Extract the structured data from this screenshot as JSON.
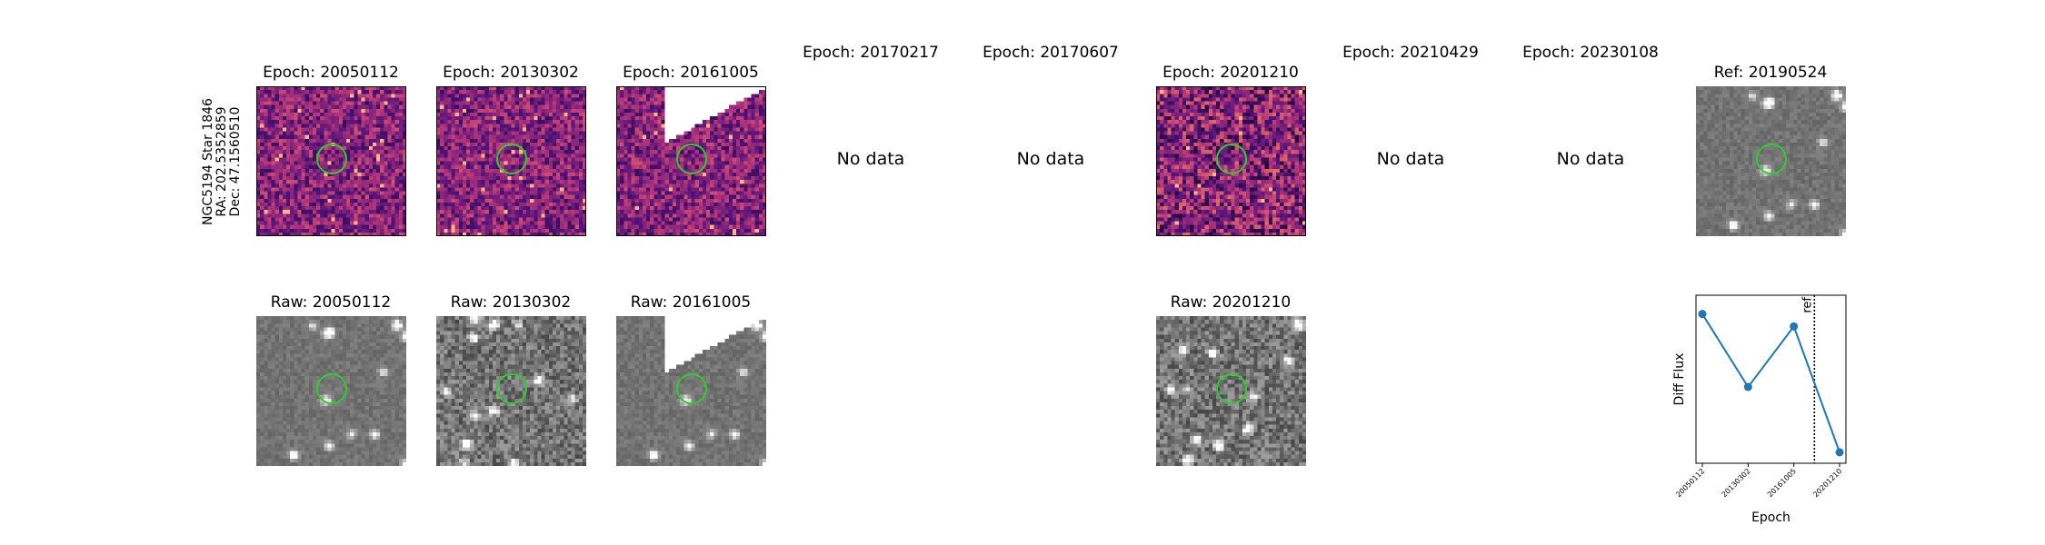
{
  "star_info": {
    "line1": "NGC5194 Star 1846",
    "line2": "RA: 202.5352859",
    "line3": "Dec: 47.1560510"
  },
  "epochs": [
    {
      "diff_title": "Epoch: 20050112",
      "raw_title": "Raw: 20050112",
      "has_data": true
    },
    {
      "diff_title": "Epoch: 20130302",
      "raw_title": "Raw: 20130302",
      "has_data": true
    },
    {
      "diff_title": "Epoch: 20161005",
      "raw_title": "Raw: 20161005",
      "has_data": true
    },
    {
      "diff_title": "Epoch: 20170217",
      "raw_title": "",
      "has_data": false
    },
    {
      "diff_title": "Epoch: 20170607",
      "raw_title": "",
      "has_data": false
    },
    {
      "diff_title": "Epoch: 20201210",
      "raw_title": "Raw: 20201210",
      "has_data": true
    },
    {
      "diff_title": "Epoch: 20210429",
      "raw_title": "",
      "has_data": false
    },
    {
      "diff_title": "Epoch: 20230108",
      "raw_title": "",
      "has_data": false
    }
  ],
  "no_data_label": "No data",
  "reference": {
    "title": "Ref: 20190524"
  },
  "colors": {
    "circle": "#2ecc2e",
    "series": "#1f77b4"
  },
  "chart_data": {
    "type": "line",
    "title": "",
    "xlabel": "Epoch",
    "ylabel": "Diff Flux",
    "categories": [
      "20050112",
      "20130302",
      "20161005",
      "20201210"
    ],
    "values": [
      0.92,
      0.45,
      0.84,
      0.03
    ],
    "ylim": [
      0,
      1
    ],
    "reference_line": {
      "label": "ref",
      "position_between": [
        "20161005",
        "20201210"
      ],
      "fraction": 0.45
    },
    "y_ticks_shown": false,
    "grid": false
  }
}
